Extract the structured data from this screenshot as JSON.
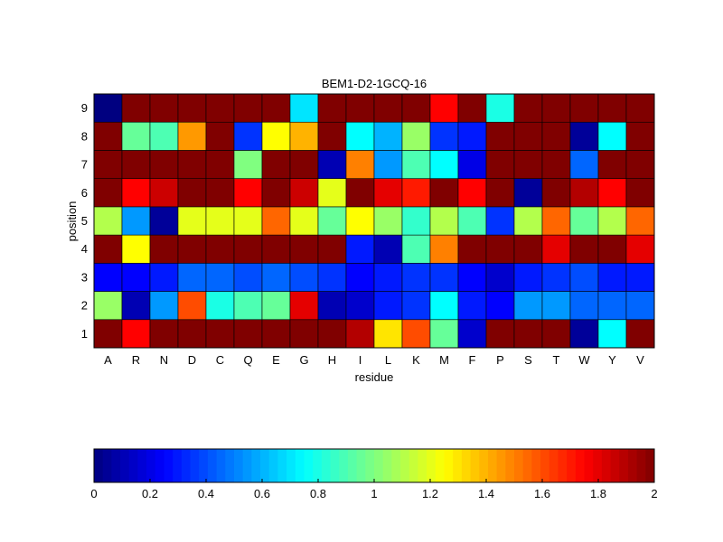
{
  "chart_data": [
    {
      "type": "heatmap",
      "title": "BEM1-D2-1GCQ-16",
      "xlabel": "residue",
      "ylabel": "position",
      "x_categories": [
        "A",
        "R",
        "N",
        "D",
        "C",
        "Q",
        "E",
        "G",
        "H",
        "I",
        "L",
        "K",
        "M",
        "F",
        "P",
        "S",
        "T",
        "W",
        "Y",
        "V"
      ],
      "y_categories": [
        "1",
        "2",
        "3",
        "4",
        "5",
        "6",
        "7",
        "8",
        "9"
      ],
      "value_range": [
        0,
        2
      ],
      "colormap": "jet",
      "values_by_position": {
        "9": [
          0.0,
          2.0,
          2.0,
          2.0,
          2.0,
          2.0,
          2.0,
          0.7,
          2.0,
          2.0,
          2.0,
          2.0,
          1.75,
          2.0,
          0.8,
          2.0,
          2.0,
          2.0,
          2.0,
          2.0
        ],
        "8": [
          2.0,
          0.95,
          0.9,
          1.45,
          2.0,
          0.35,
          1.25,
          1.4,
          2.0,
          0.75,
          0.6,
          1.05,
          0.35,
          0.3,
          2.0,
          2.0,
          2.0,
          0.05,
          0.75,
          2.0
        ],
        "7": [
          2.0,
          2.0,
          2.0,
          2.0,
          2.0,
          1.0,
          2.0,
          2.0,
          0.1,
          1.5,
          0.55,
          0.9,
          0.75,
          0.2,
          2.0,
          2.0,
          2.0,
          0.45,
          2.0,
          2.0
        ],
        "6": [
          2.0,
          1.75,
          1.85,
          2.0,
          2.0,
          1.75,
          2.0,
          1.85,
          1.2,
          2.0,
          1.8,
          1.7,
          2.0,
          1.75,
          2.0,
          0.05,
          2.0,
          1.9,
          1.75,
          2.0
        ],
        "5": [
          1.1,
          0.55,
          0.05,
          1.2,
          1.2,
          1.2,
          1.55,
          1.2,
          0.95,
          1.25,
          1.05,
          0.85,
          1.1,
          0.9,
          0.35,
          1.1,
          1.55,
          0.95,
          1.1,
          1.55
        ],
        "4": [
          2.0,
          1.25,
          2.0,
          2.0,
          2.0,
          2.0,
          2.0,
          2.0,
          2.0,
          0.3,
          0.1,
          0.9,
          1.5,
          2.0,
          2.0,
          2.0,
          1.8,
          2.0,
          2.0,
          1.8
        ],
        "3": [
          0.25,
          0.25,
          0.3,
          0.45,
          0.45,
          0.4,
          0.45,
          0.4,
          0.35,
          0.25,
          0.3,
          0.35,
          0.35,
          0.25,
          0.15,
          0.3,
          0.35,
          0.4,
          0.3,
          0.3
        ],
        "2": [
          1.05,
          0.1,
          0.55,
          1.6,
          0.8,
          0.9,
          0.95,
          1.8,
          0.1,
          0.15,
          0.3,
          0.35,
          0.75,
          0.3,
          0.25,
          0.55,
          0.55,
          0.45,
          0.45,
          0.45
        ],
        "1": [
          2.0,
          1.75,
          2.0,
          2.0,
          2.0,
          2.0,
          2.0,
          2.0,
          2.0,
          1.9,
          1.3,
          1.6,
          0.95,
          0.15,
          2.0,
          2.0,
          2.0,
          0.05,
          0.75,
          2.0
        ]
      },
      "grid": false,
      "legend": "none"
    },
    {
      "type": "colorbar",
      "orientation": "horizontal",
      "colormap": "jet",
      "value_range": [
        0,
        2
      ],
      "tick_labels": [
        "0",
        "0.2",
        "0.4",
        "0.6",
        "0.8",
        "1",
        "1.2",
        "1.4",
        "1.6",
        "1.8",
        "2"
      ],
      "tick_values": [
        0,
        0.2,
        0.4,
        0.6,
        0.8,
        1,
        1.2,
        1.4,
        1.6,
        1.8,
        2
      ]
    }
  ]
}
